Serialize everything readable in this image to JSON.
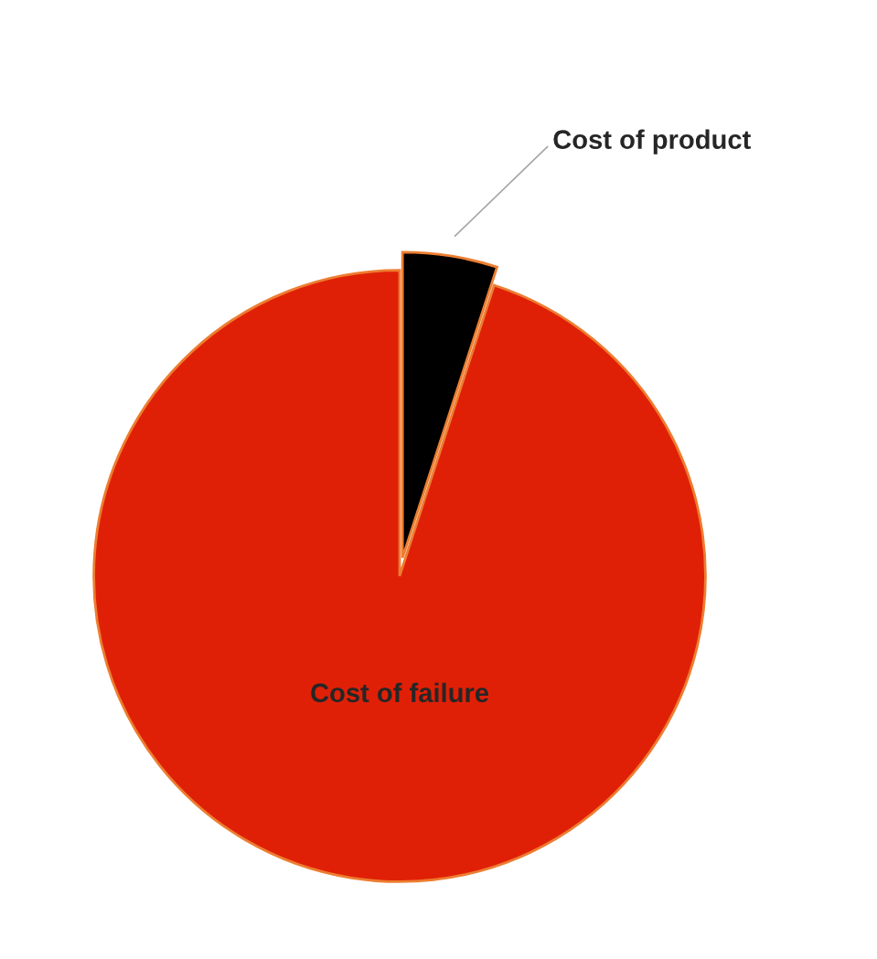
{
  "chart_data": {
    "type": "pie",
    "categories": [
      "Cost of product",
      "Cost of failure"
    ],
    "values": [
      5,
      95
    ],
    "colors": [
      "#000000",
      "#e02006"
    ]
  }
}
